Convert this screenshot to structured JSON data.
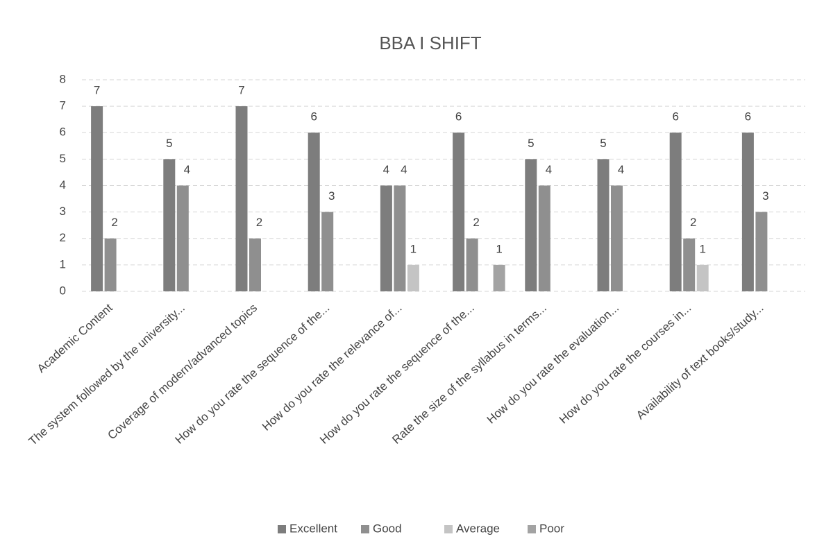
{
  "chart_data": {
    "type": "bar",
    "title": "BBA I SHIFT",
    "categories": [
      "Academic Content",
      "The system followed by the university...",
      "Coverage of modern/advanced topics",
      "How do you rate the sequence of the...",
      "How do you rate the relevance of...",
      "How do you rate the sequence of the...",
      "Rate the size of the syllabus in terms...",
      "How do you rate the evaluation...",
      "How do you rate the courses in...",
      "Availability of text books/study..."
    ],
    "series": [
      {
        "name": "Excellent",
        "color": "#7d7d7d",
        "values": [
          7,
          5,
          7,
          6,
          4,
          6,
          5,
          5,
          6,
          6
        ]
      },
      {
        "name": "Good",
        "color": "#8f8f8f",
        "values": [
          2,
          4,
          2,
          3,
          4,
          2,
          4,
          4,
          2,
          3
        ]
      },
      {
        "name": "Average",
        "color": "#c4c4c4",
        "values": [
          0,
          0,
          0,
          0,
          1,
          0,
          0,
          0,
          1,
          0
        ]
      },
      {
        "name": "Poor",
        "color": "#a3a3a3",
        "values": [
          0,
          0,
          0,
          0,
          0,
          1,
          0,
          0,
          0,
          0
        ]
      }
    ],
    "ylim": [
      0,
      8
    ],
    "yticks": [
      0,
      1,
      2,
      3,
      4,
      5,
      6,
      7,
      8
    ],
    "grid": true,
    "legend": "bottom"
  }
}
